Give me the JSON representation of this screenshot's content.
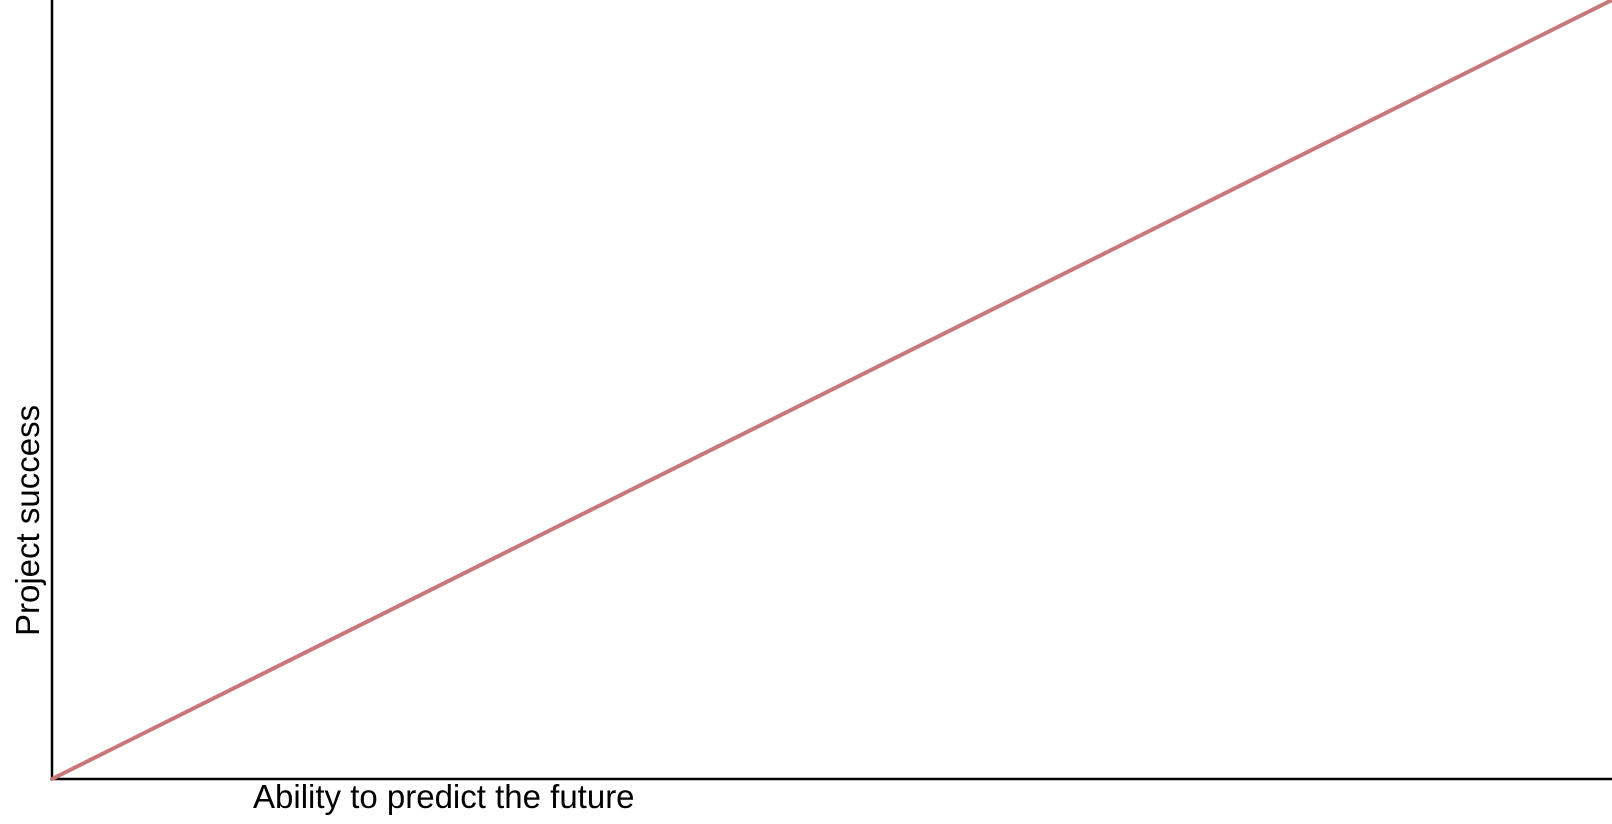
{
  "chart_data": {
    "type": "line",
    "title": "",
    "xlabel": "Ability to predict the future",
    "ylabel": "Project success",
    "xlim": [
      0,
      1
    ],
    "ylim": [
      0,
      1
    ],
    "grid": false,
    "series": [
      {
        "x": [
          0,
          1
        ],
        "values": [
          0,
          1
        ],
        "color": "#c87878"
      }
    ]
  },
  "colors": {
    "axis": "#000000",
    "line": "#c87878",
    "background": "#ffffff"
  }
}
